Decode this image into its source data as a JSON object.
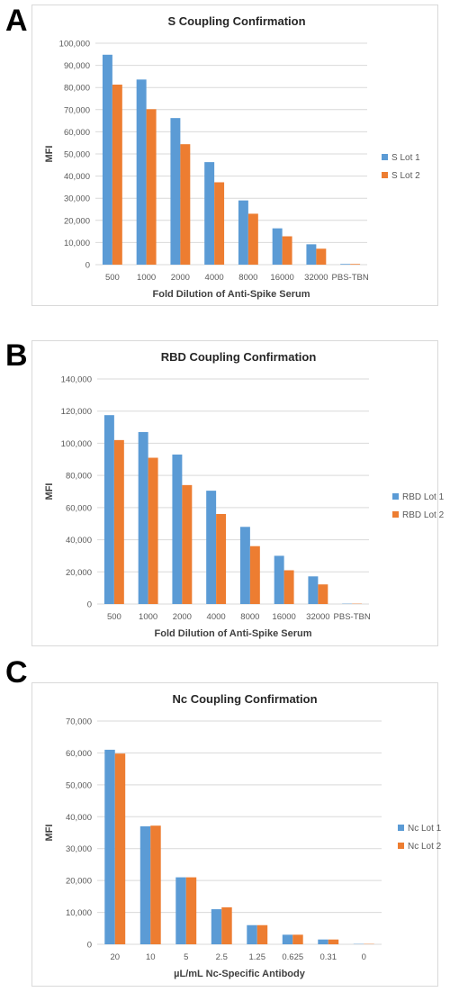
{
  "panels": [
    {
      "letter": "A"
    },
    {
      "letter": "B"
    },
    {
      "letter": "C"
    }
  ],
  "colors": {
    "series1": "#5b9bd5",
    "series2": "#ed7d31",
    "grid": "#d9d9d9"
  },
  "chart_data": [
    {
      "type": "bar",
      "title": "S Coupling Confirmation",
      "xlabel": "Fold Dilution of Anti-Spike Serum",
      "ylabel": "MFI",
      "categories": [
        "500",
        "1000",
        "2000",
        "4000",
        "8000",
        "16000",
        "32000",
        "PBS-TBN"
      ],
      "ylim": [
        0,
        100000
      ],
      "yticks": [
        0,
        10000,
        20000,
        30000,
        40000,
        50000,
        60000,
        70000,
        80000,
        90000,
        100000
      ],
      "yticklabels": [
        "0",
        "10,000",
        "20,000",
        "30,000",
        "40,000",
        "50,000",
        "60,000",
        "70,000",
        "80,000",
        "90,000",
        "100,000"
      ],
      "grid": true,
      "legend": "right",
      "series": [
        {
          "name": "S Lot 1",
          "values": [
            94800,
            83600,
            66200,
            46300,
            29000,
            16400,
            9200,
            300
          ]
        },
        {
          "name": "S Lot 2",
          "values": [
            81300,
            70200,
            54400,
            37200,
            23000,
            12800,
            7200,
            300
          ]
        }
      ]
    },
    {
      "type": "bar",
      "title": "RBD Coupling Confirmation",
      "xlabel": "Fold Dilution of Anti-Spike Serum",
      "ylabel": "MFI",
      "categories": [
        "500",
        "1000",
        "2000",
        "4000",
        "8000",
        "16000",
        "32000",
        "PBS-TBN"
      ],
      "ylim": [
        0,
        140000
      ],
      "yticks": [
        0,
        20000,
        40000,
        60000,
        80000,
        100000,
        120000,
        140000
      ],
      "yticklabels": [
        "0",
        "20,000",
        "40,000",
        "60,000",
        "80,000",
        "100,000",
        "120,000",
        "140,000"
      ],
      "grid": true,
      "legend": "right",
      "series": [
        {
          "name": "RBD Lot 1",
          "values": [
            117500,
            107000,
            93000,
            70500,
            48000,
            30000,
            17200,
            200
          ]
        },
        {
          "name": "RBD Lot 2",
          "values": [
            102000,
            91000,
            74000,
            56000,
            36000,
            21000,
            12200,
            200
          ]
        }
      ]
    },
    {
      "type": "bar",
      "title": "Nc Coupling Confirmation",
      "xlabel": "µL/mL Nc-Specific Antibody",
      "ylabel": "MFI",
      "categories": [
        "20",
        "10",
        "5",
        "2.5",
        "1.25",
        "0.625",
        "0.31",
        "0"
      ],
      "ylim": [
        0,
        70000
      ],
      "yticks": [
        0,
        10000,
        20000,
        30000,
        40000,
        50000,
        60000,
        70000
      ],
      "yticklabels": [
        "0",
        "10,000",
        "20,000",
        "30,000",
        "40,000",
        "50,000",
        "60,000",
        "70,000"
      ],
      "grid": true,
      "legend": "right",
      "series": [
        {
          "name": "Nc Lot 1",
          "values": [
            61000,
            37000,
            21000,
            11000,
            6000,
            3000,
            1500,
            100
          ]
        },
        {
          "name": "Nc Lot 2",
          "values": [
            59800,
            37200,
            21000,
            11600,
            6000,
            3000,
            1500,
            100
          ]
        }
      ]
    }
  ]
}
